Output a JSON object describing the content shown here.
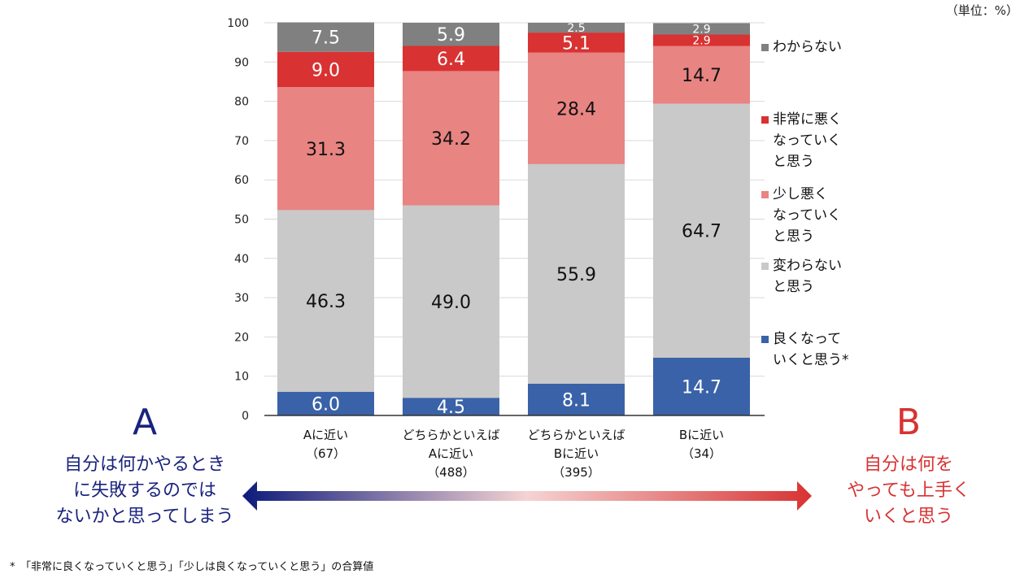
{
  "unit_label": "（単位：%）",
  "footnote": "*　「非常に良くなっていくと思う」「少しは良くなっていくと思う」の合算値",
  "left_side": {
    "letter": "A",
    "text": "自分は何かやるとき\nに失敗するのでは\nないかと思ってしまう",
    "color": "#1a237e"
  },
  "right_side": {
    "letter": "B",
    "text": "自分は何を\nやっても上手く\nいくと思う",
    "color": "#d83232"
  },
  "chart_data": {
    "type": "stacked-bar",
    "ylim": [
      0,
      100
    ],
    "yticks": [
      0,
      10,
      20,
      30,
      40,
      50,
      60,
      70,
      80,
      90,
      100
    ],
    "grid": true,
    "legend_placement": "right",
    "categories": [
      "Aに近い\n（67）",
      "どちらかといえば\nAに近い\n（488）",
      "どちらかといえば\nBに近い\n（395）",
      "Bに近い\n（34）"
    ],
    "series": [
      {
        "name": "良くなって\nいくと思う*",
        "color": "#3a62a8",
        "label_color": "#ffffff",
        "values": [
          6.0,
          4.5,
          8.1,
          14.7
        ]
      },
      {
        "name": "変わらない\nと思う",
        "color": "#c9c9c9",
        "label_color": "#111111",
        "values": [
          46.3,
          49.0,
          55.9,
          64.7
        ]
      },
      {
        "name": "少し悪く\nなっていく\nと思う",
        "color": "#e88482",
        "label_color": "#111111",
        "values": [
          31.3,
          34.2,
          28.4,
          14.7
        ]
      },
      {
        "name": "非常に悪く\nなっていく\nと思う",
        "color": "#d83232",
        "label_color": "#ffffff",
        "values": [
          9.0,
          6.4,
          5.1,
          2.9
        ]
      },
      {
        "name": "わからない",
        "color": "#808080",
        "label_color": "#ffffff",
        "values": [
          7.5,
          5.9,
          2.5,
          2.9
        ]
      }
    ]
  }
}
